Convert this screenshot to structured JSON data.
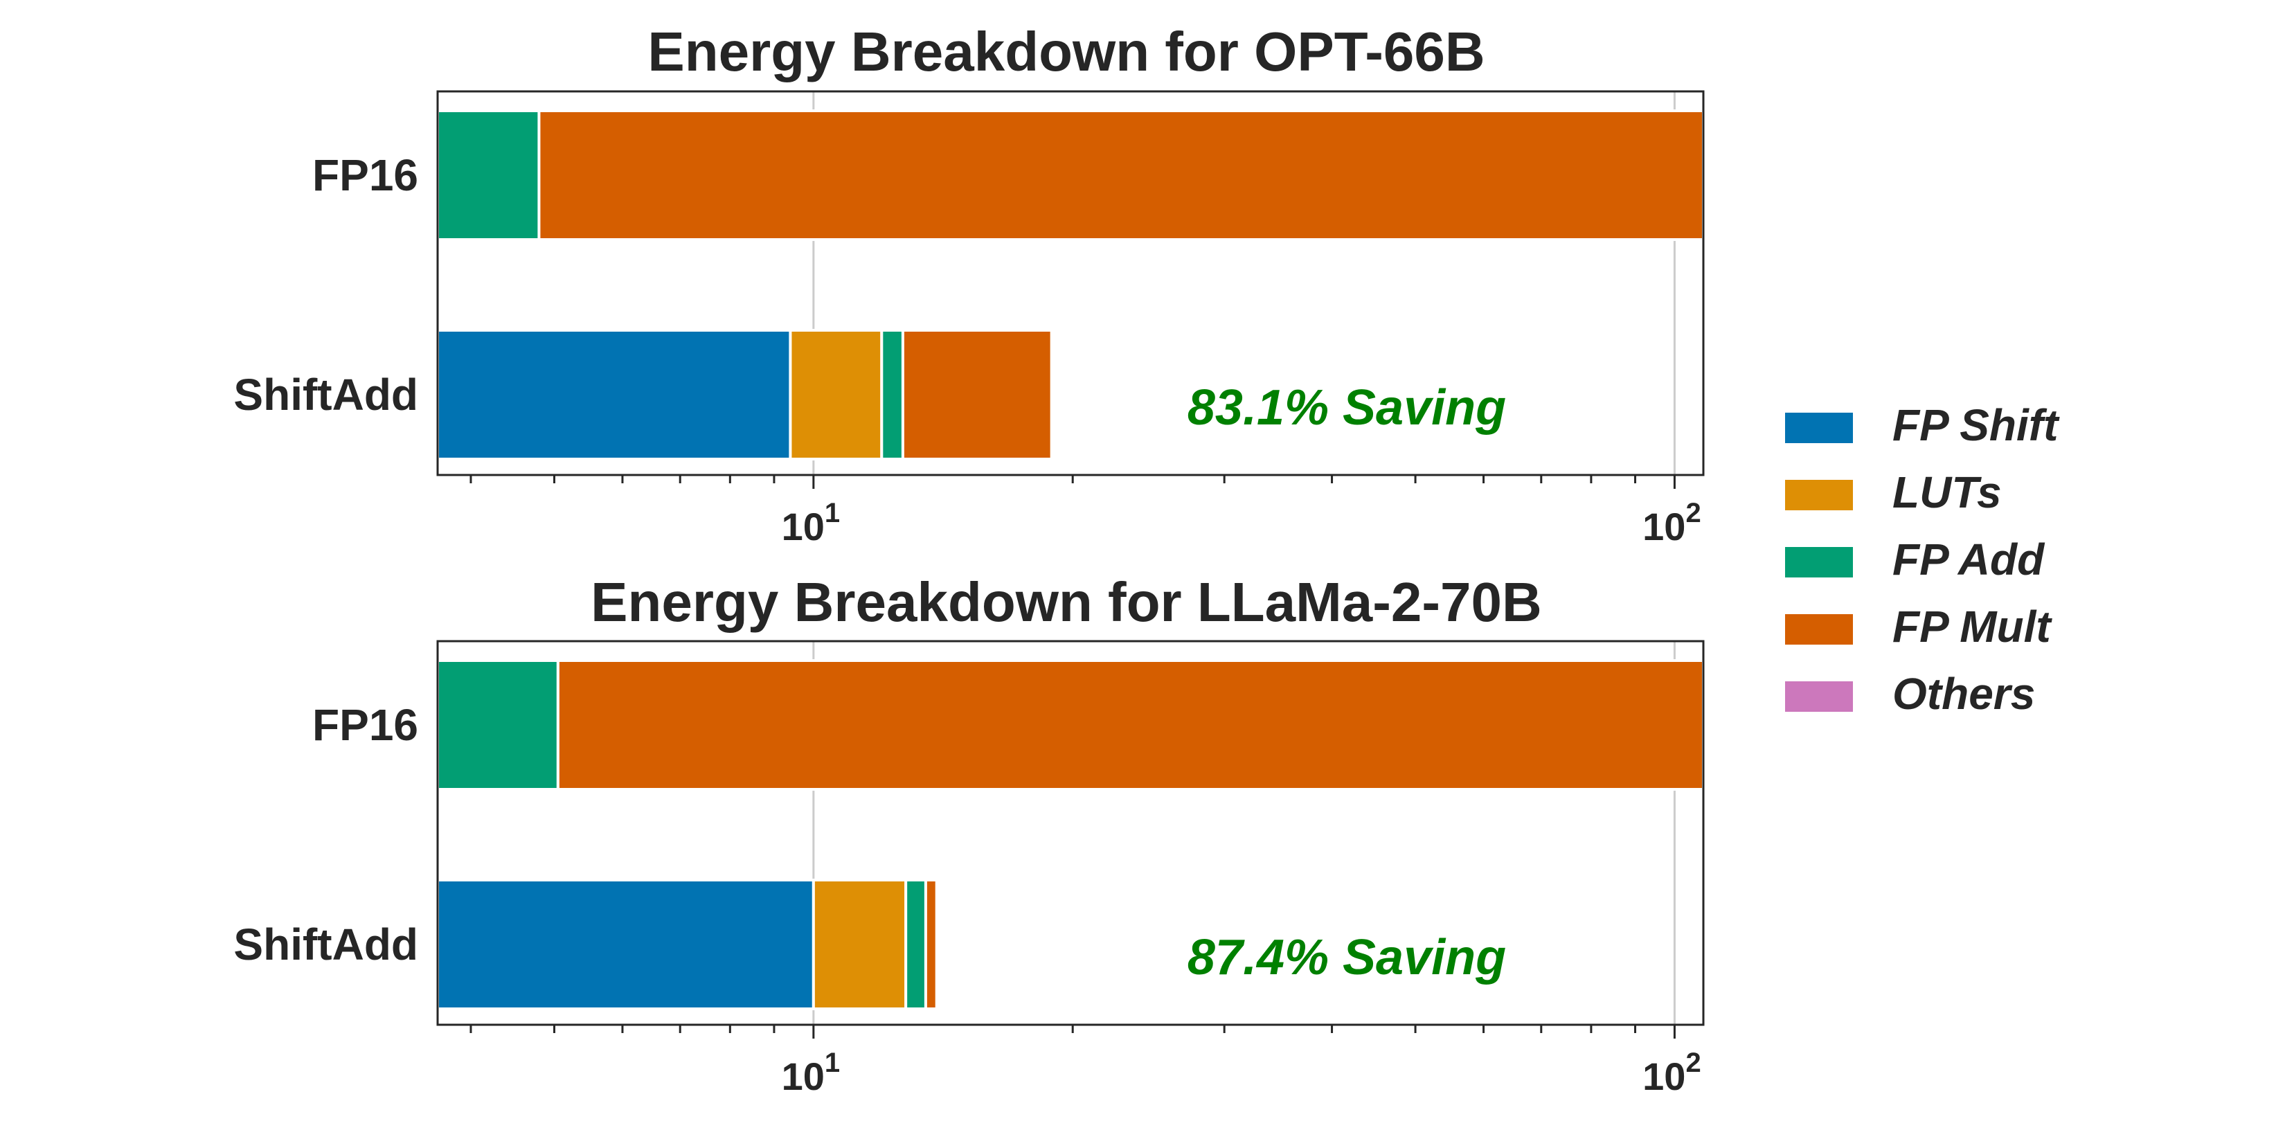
{
  "chart_data": {
    "type": "bar",
    "orientation": "horizontal",
    "stacked": true,
    "xscale": "log",
    "xlim": [
      3.66,
      108
    ],
    "grid": "x-major-only",
    "legend_position": "right",
    "legend": [
      {
        "name": "FP Shift",
        "color": "#0173b2"
      },
      {
        "name": "LUTs",
        "color": "#de8f05"
      },
      {
        "name": "FP Add",
        "color": "#029e73"
      },
      {
        "name": "FP Mult",
        "color": "#d55e00"
      },
      {
        "name": "Others",
        "color": "#cc78bc"
      }
    ],
    "charts": [
      {
        "title": "Energy Breakdown for OPT-66B",
        "categories": [
          "FP16",
          "ShiftAdd"
        ],
        "annotation": {
          "text": "83.1% Saving",
          "color": "#008000"
        },
        "xticks": [
          {
            "base": "10",
            "exp": "1",
            "value": 10
          },
          {
            "base": "10",
            "exp": "2",
            "value": 100
          }
        ],
        "bars": [
          {
            "category": "FP16",
            "segments": [
              {
                "name": "FP Add",
                "start": 3.66,
                "end": 4.8
              },
              {
                "name": "FP Mult",
                "start": 4.8,
                "end": 108
              }
            ]
          },
          {
            "category": "ShiftAdd",
            "segments": [
              {
                "name": "FP Shift",
                "start": 3.66,
                "end": 9.4
              },
              {
                "name": "LUTs",
                "start": 9.4,
                "end": 12.0
              },
              {
                "name": "FP Add",
                "start": 12.0,
                "end": 12.7
              },
              {
                "name": "FP Mult",
                "start": 12.7,
                "end": 18.9
              }
            ]
          }
        ]
      },
      {
        "title": "Energy Breakdown for LLaMa-2-70B",
        "categories": [
          "FP16",
          "ShiftAdd"
        ],
        "annotation": {
          "text": "87.4% Saving",
          "color": "#008000"
        },
        "xticks": [
          {
            "base": "10",
            "exp": "1",
            "value": 10
          },
          {
            "base": "10",
            "exp": "2",
            "value": 100
          }
        ],
        "bars": [
          {
            "category": "FP16",
            "segments": [
              {
                "name": "FP Add",
                "start": 3.66,
                "end": 5.05
              },
              {
                "name": "FP Mult",
                "start": 5.05,
                "end": 108
              }
            ]
          },
          {
            "category": "ShiftAdd",
            "segments": [
              {
                "name": "FP Shift",
                "start": 3.66,
                "end": 10.0
              },
              {
                "name": "LUTs",
                "start": 10.0,
                "end": 12.8
              },
              {
                "name": "FP Add",
                "start": 12.8,
                "end": 13.5
              },
              {
                "name": "FP Mult",
                "start": 13.5,
                "end": 13.9
              }
            ]
          }
        ]
      }
    ]
  }
}
